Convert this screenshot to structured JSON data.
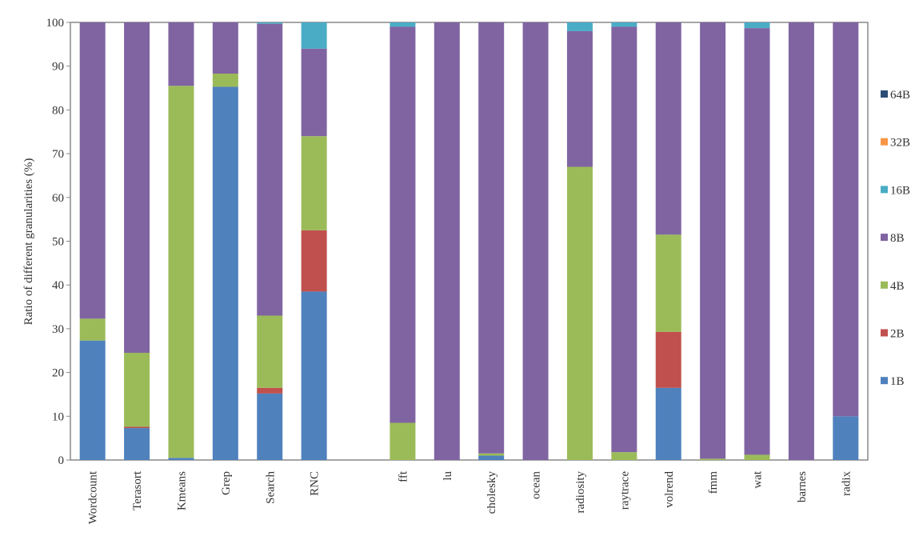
{
  "chart_data": {
    "type": "bar",
    "stacked": true,
    "ylabel": "Ratio of different granularities (%)",
    "ylim": [
      0,
      100
    ],
    "yticks": [
      0,
      10,
      20,
      30,
      40,
      50,
      60,
      70,
      80,
      90,
      100
    ],
    "grid": false,
    "legend_position": "right",
    "categories": [
      "Wordcount",
      "Terasort",
      "Kmeans",
      "Grep",
      "Search",
      "RNC",
      "",
      "fft",
      "lu",
      "cholesky",
      "ocean",
      "radiosity",
      "raytrace",
      "volrend",
      "fmm",
      "wat",
      "barnes",
      "radix"
    ],
    "series": [
      {
        "name": "1B",
        "color": "#4f81bd",
        "values": [
          27.3,
          7.3,
          0.5,
          85.3,
          15.2,
          38.5,
          0,
          0,
          0,
          1.0,
          0,
          0,
          0,
          16.5,
          0,
          0,
          0,
          10.0
        ]
      },
      {
        "name": "2B",
        "color": "#c0504d",
        "values": [
          0,
          0.3,
          0,
          0,
          1.3,
          14.0,
          0,
          0,
          0,
          0,
          0,
          0,
          0,
          12.8,
          0,
          0,
          0,
          0
        ]
      },
      {
        "name": "4B",
        "color": "#9bbb59",
        "values": [
          5.0,
          16.9,
          85.0,
          3.0,
          16.5,
          21.5,
          0,
          8.5,
          0,
          0.5,
          0,
          67.0,
          1.8,
          22.2,
          0.3,
          1.2,
          0,
          0
        ]
      },
      {
        "name": "8B",
        "color": "#8064a2",
        "values": [
          67.7,
          75.5,
          14.5,
          11.7,
          66.7,
          20.0,
          0,
          90.5,
          100,
          98.5,
          100,
          31.0,
          97.2,
          48.5,
          99.7,
          97.5,
          100,
          90.0
        ]
      },
      {
        "name": "16B",
        "color": "#4bacc6",
        "values": [
          0,
          0,
          0,
          0,
          0.3,
          6.0,
          0,
          1.0,
          0,
          0,
          0,
          2.0,
          1.0,
          0,
          0,
          1.3,
          0,
          0
        ]
      },
      {
        "name": "32B",
        "color": "#f79646",
        "values": [
          0,
          0,
          0,
          0,
          0,
          0,
          0,
          0,
          0,
          0,
          0,
          0,
          0,
          0,
          0,
          0,
          0,
          0
        ]
      },
      {
        "name": "64B",
        "color": "#2c4d75",
        "values": [
          0,
          0,
          0,
          0,
          0,
          0,
          0,
          0,
          0,
          0,
          0,
          0,
          0,
          0,
          0,
          0,
          0,
          0
        ]
      }
    ]
  }
}
